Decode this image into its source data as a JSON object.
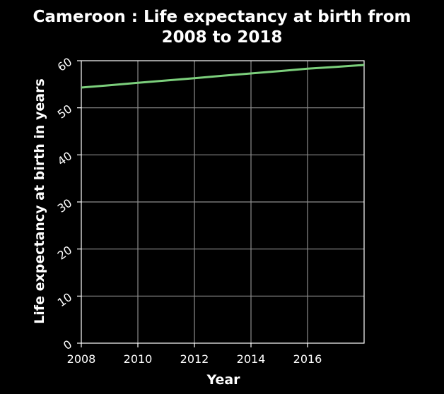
{
  "chart_data": {
    "type": "line",
    "title_lines": [
      "Cameroon : Life expectancy at birth from",
      "2008 to 2018"
    ],
    "xlabel": "Year",
    "ylabel": "Life expectancy at birth in years",
    "x_ticks": [
      2008,
      2010,
      2012,
      2014,
      2016
    ],
    "y_ticks": [
      0,
      10,
      20,
      30,
      40,
      50,
      60
    ],
    "xlim": [
      2008,
      2018
    ],
    "ylim": [
      0,
      60
    ],
    "grid": true,
    "series": [
      {
        "x": [
          2008,
          2009,
          2010,
          2011,
          2012,
          2013,
          2014,
          2015,
          2016,
          2017,
          2018
        ],
        "values": [
          54.3,
          54.8,
          55.3,
          55.8,
          56.3,
          56.8,
          57.3,
          57.8,
          58.3,
          58.7,
          59.1
        ]
      }
    ],
    "colors": {
      "background": "#000000",
      "line": "#7ccf7c",
      "text": "#ffffff",
      "grid": "#8c8c8c"
    }
  }
}
